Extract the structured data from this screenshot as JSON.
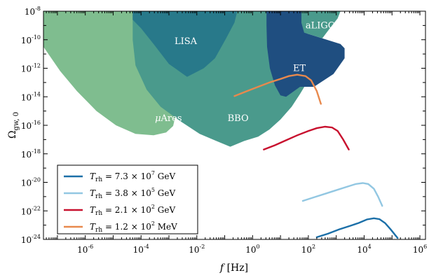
{
  "chart_data": {
    "type": "area",
    "title": "",
    "xlabel": {
      "symbol": "f",
      "unit": "[Hz]"
    },
    "ylabel": {
      "base": "Ω",
      "sub": "gw, 0"
    },
    "xlim_log10": [
      -7.5,
      6.2
    ],
    "ylim_log10": [
      -24,
      -8
    ],
    "x_ticks": [
      {
        "base": "10",
        "exp": "-6",
        "value": -6
      },
      {
        "base": "10",
        "exp": "-4",
        "value": -4
      },
      {
        "base": "10",
        "exp": "-2",
        "value": -2
      },
      {
        "base": "10",
        "exp": "0",
        "value": 0
      },
      {
        "base": "10",
        "exp": "2",
        "value": 2
      },
      {
        "base": "10",
        "exp": "4",
        "value": 4
      },
      {
        "base": "10",
        "exp": "6",
        "value": 6
      }
    ],
    "y_ticks": [
      {
        "base": "10",
        "exp": "-8",
        "value": -8
      },
      {
        "base": "10",
        "exp": "-10",
        "value": -10
      },
      {
        "base": "10",
        "exp": "-12",
        "value": -12
      },
      {
        "base": "10",
        "exp": "-14",
        "value": -14
      },
      {
        "base": "10",
        "exp": "-16",
        "value": -16
      },
      {
        "base": "10",
        "exp": "-18",
        "value": -18
      },
      {
        "base": "10",
        "exp": "-20",
        "value": -20
      },
      {
        "base": "10",
        "exp": "-22",
        "value": -22
      },
      {
        "base": "10",
        "exp": "-24",
        "value": -24
      }
    ],
    "sensitivity_regions": [
      {
        "name": "μAres",
        "label_prefix": "μ",
        "label_rest": "Ares",
        "color": "#7fbd8f",
        "label_at": [
          -3.5,
          -15.7
        ],
        "polygon_log10": [
          [
            -7.5,
            -8
          ],
          [
            -3.4,
            -8
          ],
          [
            -3.2,
            -8.6
          ],
          [
            -2.95,
            -9.5
          ],
          [
            -2.75,
            -10.8
          ],
          [
            -2.7,
            -12.3
          ],
          [
            -2.75,
            -14.0
          ],
          [
            -2.75,
            -15.2
          ],
          [
            -2.85,
            -16.05
          ],
          [
            -3.1,
            -16.5
          ],
          [
            -3.55,
            -16.7
          ],
          [
            -4.2,
            -16.6
          ],
          [
            -4.9,
            -16.0
          ],
          [
            -5.6,
            -15.0
          ],
          [
            -6.3,
            -13.6
          ],
          [
            -6.9,
            -12.2
          ],
          [
            -7.5,
            -10.5
          ]
        ]
      },
      {
        "name": "BBO",
        "label_prefix": "",
        "label_rest": "BBO",
        "color": "#4a9a8c",
        "label_at": [
          -0.9,
          -15.7
        ],
        "polygon_log10": [
          [
            -4.3,
            -8
          ],
          [
            1.95,
            -8
          ],
          [
            1.95,
            -13.0
          ],
          [
            1.7,
            -13.8
          ],
          [
            1.4,
            -14.7
          ],
          [
            1.0,
            -15.6
          ],
          [
            0.6,
            -16.3
          ],
          [
            0.2,
            -16.8
          ],
          [
            -0.3,
            -17.1
          ],
          [
            -0.8,
            -17.5
          ],
          [
            -1.3,
            -17.1
          ],
          [
            -1.9,
            -16.6
          ],
          [
            -2.6,
            -15.7
          ],
          [
            -3.3,
            -14.7
          ],
          [
            -3.8,
            -13.5
          ],
          [
            -4.2,
            -11.8
          ],
          [
            -4.3,
            -10.0
          ]
        ]
      },
      {
        "name": "LISA",
        "label_prefix": "",
        "label_rest": "LISA",
        "color": "#28798a",
        "label_at": [
          -2.8,
          -10.3
        ],
        "polygon_log10": [
          [
            -4.3,
            -8
          ],
          [
            -0.55,
            -8
          ],
          [
            -0.65,
            -8.8
          ],
          [
            -0.95,
            -9.9
          ],
          [
            -1.35,
            -11.3
          ],
          [
            -1.75,
            -12.0
          ],
          [
            -2.35,
            -12.6
          ],
          [
            -3.0,
            -11.7
          ],
          [
            -3.55,
            -10.3
          ],
          [
            -4.0,
            -9.2
          ],
          [
            -4.3,
            -8.6
          ]
        ]
      },
      {
        "name": "ET",
        "label_prefix": "",
        "label_rest": "ET",
        "color": "#1f4e80",
        "label_at": [
          1.45,
          -12.2
        ],
        "polygon_log10": [
          [
            0.5,
            -8
          ],
          [
            1.75,
            -8
          ],
          [
            1.75,
            -8.8
          ],
          [
            1.85,
            -9.5
          ],
          [
            2.5,
            -9.9
          ],
          [
            3.15,
            -10.3
          ],
          [
            3.3,
            -10.6
          ],
          [
            3.3,
            -11.3
          ],
          [
            2.9,
            -12.4
          ],
          [
            2.2,
            -13.3
          ],
          [
            1.7,
            -13.3
          ],
          [
            1.2,
            -14.0
          ],
          [
            1.0,
            -13.9
          ],
          [
            0.8,
            -13.2
          ],
          [
            0.62,
            -12.0
          ],
          [
            0.52,
            -10.5
          ],
          [
            0.5,
            -9.0
          ]
        ]
      },
      {
        "name": "aLIGO",
        "label_prefix": "",
        "label_rest": "aLIGO",
        "color": "#4a9a8c",
        "label_at": [
          1.9,
          -9.2
        ],
        "polygon_log10": [
          [
            1.75,
            -8
          ],
          [
            3.15,
            -8
          ],
          [
            3.05,
            -8.5
          ],
          [
            2.75,
            -9.25
          ],
          [
            2.5,
            -9.9
          ],
          [
            1.85,
            -9.5
          ],
          [
            1.75,
            -8.8
          ]
        ]
      }
    ],
    "series": [
      {
        "name": "T_rh = 7.3 × 10^7 GeV",
        "label_parts": {
          "lhs": "T",
          "sub": "rh",
          "eq": " = 7.3 × 10",
          "exp": "7",
          "unit": " GeV"
        },
        "color": "#1b6fa8",
        "points_log10": [
          [
            2.3,
            -23.85
          ],
          [
            2.7,
            -23.6
          ],
          [
            3.1,
            -23.3
          ],
          [
            3.5,
            -23.05
          ],
          [
            3.8,
            -22.85
          ],
          [
            4.1,
            -22.6
          ],
          [
            4.35,
            -22.52
          ],
          [
            4.55,
            -22.58
          ],
          [
            4.75,
            -22.85
          ],
          [
            4.95,
            -23.3
          ],
          [
            5.2,
            -23.9
          ]
        ]
      },
      {
        "name": "T_rh = 3.8 × 10^5 GeV",
        "label_parts": {
          "lhs": "T",
          "sub": "rh",
          "eq": " = 3.8 × 10",
          "exp": "5",
          "unit": " GeV"
        },
        "color": "#92c7e2",
        "points_log10": [
          [
            1.8,
            -21.3
          ],
          [
            2.2,
            -21.05
          ],
          [
            2.6,
            -20.8
          ],
          [
            3.0,
            -20.55
          ],
          [
            3.4,
            -20.3
          ],
          [
            3.7,
            -20.12
          ],
          [
            3.95,
            -20.05
          ],
          [
            4.15,
            -20.12
          ],
          [
            4.35,
            -20.45
          ],
          [
            4.5,
            -21.0
          ],
          [
            4.65,
            -21.65
          ]
        ]
      },
      {
        "name": "T_rh = 2.1 × 10^2 GeV",
        "label_parts": {
          "lhs": "T",
          "sub": "rh",
          "eq": " = 2.1 × 10",
          "exp": "2",
          "unit": " GeV"
        },
        "color": "#c8102e",
        "points_log10": [
          [
            0.4,
            -17.7
          ],
          [
            0.8,
            -17.4
          ],
          [
            1.2,
            -17.05
          ],
          [
            1.6,
            -16.7
          ],
          [
            2.0,
            -16.4
          ],
          [
            2.3,
            -16.2
          ],
          [
            2.6,
            -16.1
          ],
          [
            2.85,
            -16.15
          ],
          [
            3.05,
            -16.4
          ],
          [
            3.25,
            -17.0
          ],
          [
            3.45,
            -17.7
          ]
        ]
      },
      {
        "name": "T_rh = 1.2 × 10^2 MeV",
        "label_parts": {
          "lhs": "T",
          "sub": "rh",
          "eq": " = 1.2 × 10",
          "exp": "2",
          "unit": " MeV"
        },
        "color": "#e8894d",
        "points_log10": [
          [
            -0.65,
            -13.95
          ],
          [
            -0.2,
            -13.6
          ],
          [
            0.2,
            -13.3
          ],
          [
            0.6,
            -13.0
          ],
          [
            1.0,
            -12.75
          ],
          [
            1.3,
            -12.55
          ],
          [
            1.6,
            -12.45
          ],
          [
            1.9,
            -12.55
          ],
          [
            2.1,
            -12.85
          ],
          [
            2.3,
            -13.6
          ],
          [
            2.45,
            -14.5
          ]
        ]
      }
    ],
    "legend_position": "bottom-left",
    "grid": false
  }
}
